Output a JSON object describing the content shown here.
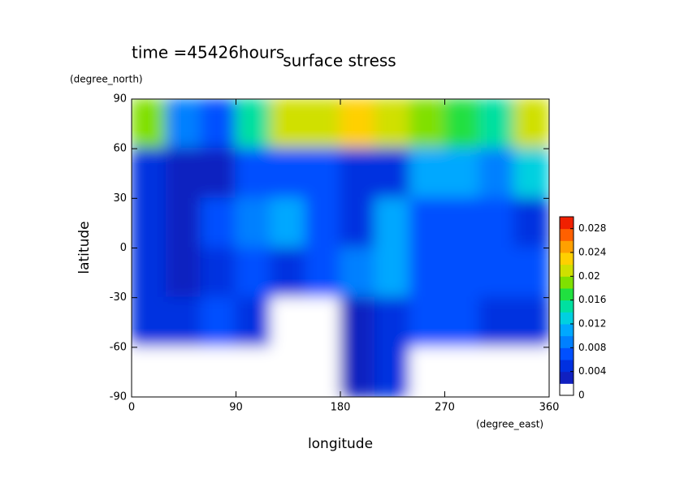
{
  "chart_data": {
    "type": "contour",
    "title": "surface stress",
    "subtitle": "time =45426hours",
    "x_label": "longitude",
    "x_unit": "(degree_east)",
    "y_label": "latitude",
    "y_unit": "(degree_north)",
    "x": [
      15,
      45,
      75,
      105,
      135,
      165,
      195,
      225,
      255,
      285,
      315,
      345
    ],
    "y": [
      75,
      45,
      15,
      -15,
      -45,
      -75
    ],
    "z": [
      [
        0.018,
        0.008,
        0.006,
        0.014,
        0.02,
        0.02,
        0.022,
        0.02,
        0.018,
        0.016,
        0.014,
        0.02
      ],
      [
        0.004,
        0.002,
        0.002,
        0.006,
        0.006,
        0.006,
        0.004,
        0.004,
        0.01,
        0.01,
        0.008,
        0.012
      ],
      [
        0.004,
        0.002,
        0.006,
        0.008,
        0.01,
        0.006,
        0.004,
        0.01,
        0.006,
        0.006,
        0.006,
        0.004
      ],
      [
        0.004,
        0.002,
        0.004,
        0.006,
        0.004,
        0.006,
        0.008,
        0.01,
        0.006,
        0.006,
        0.006,
        0.006
      ],
      [
        0.004,
        0.004,
        0.006,
        0.004,
        0,
        0,
        0.002,
        0.004,
        0.006,
        0.006,
        0.004,
        0.004
      ],
      [
        0,
        0,
        0,
        0,
        0,
        0,
        0.002,
        0.004,
        0,
        0,
        0,
        0
      ]
    ],
    "xlim": [
      0,
      360
    ],
    "xticks": [
      0,
      90,
      180,
      270,
      360
    ],
    "ylim": [
      -90,
      90
    ],
    "yticks": [
      -90,
      -60,
      -30,
      0,
      30,
      60,
      90
    ],
    "clim": [
      0,
      0.03
    ],
    "cticks": [
      0,
      0.004,
      0.008,
      0.012,
      0.016,
      0.02,
      0.024,
      0.028
    ],
    "colors": [
      "#ffffff",
      "#1020c0",
      "#0030e0",
      "#0050ff",
      "#0080ff",
      "#00a8ff",
      "#00d0e0",
      "#00e0a0",
      "#20e040",
      "#80e000",
      "#d0e000",
      "#ffd000",
      "#ffa000",
      "#ff6000",
      "#f02000"
    ]
  }
}
